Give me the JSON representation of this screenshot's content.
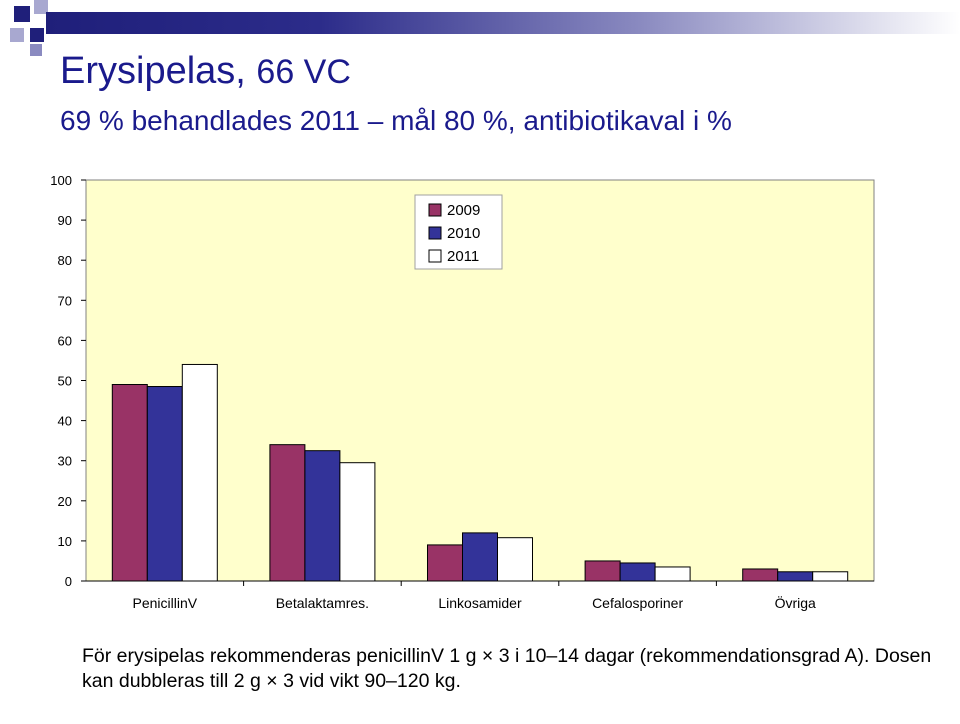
{
  "header": {
    "title_main": "Erysipelas,",
    "title_suffix": "66 VC",
    "subtitle": "69 % behandlades 2011 – mål 80 %, antibiotikaval i %"
  },
  "chart_data": {
    "type": "bar",
    "categories": [
      "PenicillinV",
      "Betalaktamres.",
      "Linkosamider",
      "Cefalosporiner",
      "Övriga"
    ],
    "series": [
      {
        "name": "2009",
        "color": "#993366",
        "values": [
          49,
          34,
          9,
          5,
          3
        ]
      },
      {
        "name": "2010",
        "color": "#333399",
        "values": [
          48.5,
          32.5,
          12,
          4.5,
          2.3
        ]
      },
      {
        "name": "2011",
        "color": "#ffffff",
        "values": [
          54,
          29.5,
          10.8,
          3.5,
          2.3
        ]
      }
    ],
    "ylim": [
      0,
      100
    ],
    "yticks": [
      "0",
      "10",
      "20",
      "30",
      "40",
      "50",
      "60",
      "70",
      "80",
      "90",
      "100"
    ],
    "grid": false,
    "legend_position": "top-center",
    "plot_background": "#ffffcc"
  },
  "footer": {
    "note": "För erysipelas rekommenderas penicillinV 1 g × 3 i 10–14 dagar (rekommendationsgrad A). Dosen kan dubbleras till 2 g × 3 vid vikt 90–120 kg."
  }
}
